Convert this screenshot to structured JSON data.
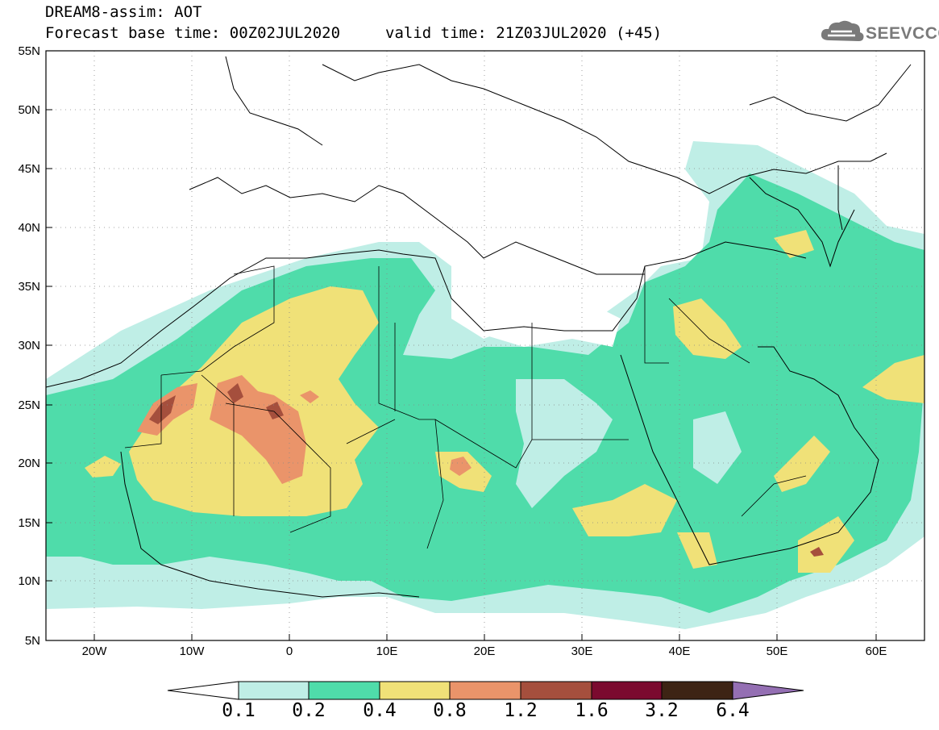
{
  "header": {
    "title_line1": "DREAM8-assim: AOT",
    "title_line2": "Forecast base time: 00Z02JUL2020",
    "valid_time": "valid time: 21Z03JUL2020 (+45)"
  },
  "logo": {
    "text": "SEEVCCC",
    "icon": "cloud-icon"
  },
  "map": {
    "lat_labels": [
      "55N",
      "50N",
      "45N",
      "40N",
      "35N",
      "30N",
      "25N",
      "20N",
      "15N",
      "10N",
      "5N"
    ],
    "lon_labels": [
      "20W",
      "10W",
      "0",
      "10E",
      "20E",
      "30E",
      "40E",
      "50E",
      "60E"
    ],
    "lon_range": [
      -25,
      65
    ],
    "lat_range": [
      5,
      55
    ],
    "grid": "dotted"
  },
  "legend": {
    "labels": [
      "0.1",
      "0.2",
      "0.4",
      "0.8",
      "1.2",
      "1.6",
      "3.2",
      "6.4"
    ],
    "colors": [
      "#ffffff",
      "#bfeee6",
      "#4fdcaa",
      "#f0e178",
      "#ea946a",
      "#a54f3d",
      "#7b0a2f",
      "#3d2414",
      "#946fb3"
    ]
  },
  "chart_data": {
    "type": "heatmap",
    "title": "DREAM8-assim: AOT",
    "xlabel": "",
    "ylabel": "",
    "xlim": [
      -25,
      65
    ],
    "ylim": [
      5,
      55
    ],
    "colorbar_bounds": [
      0.1,
      0.2,
      0.4,
      0.8,
      1.2,
      1.6,
      3.2,
      6.4
    ]
  }
}
